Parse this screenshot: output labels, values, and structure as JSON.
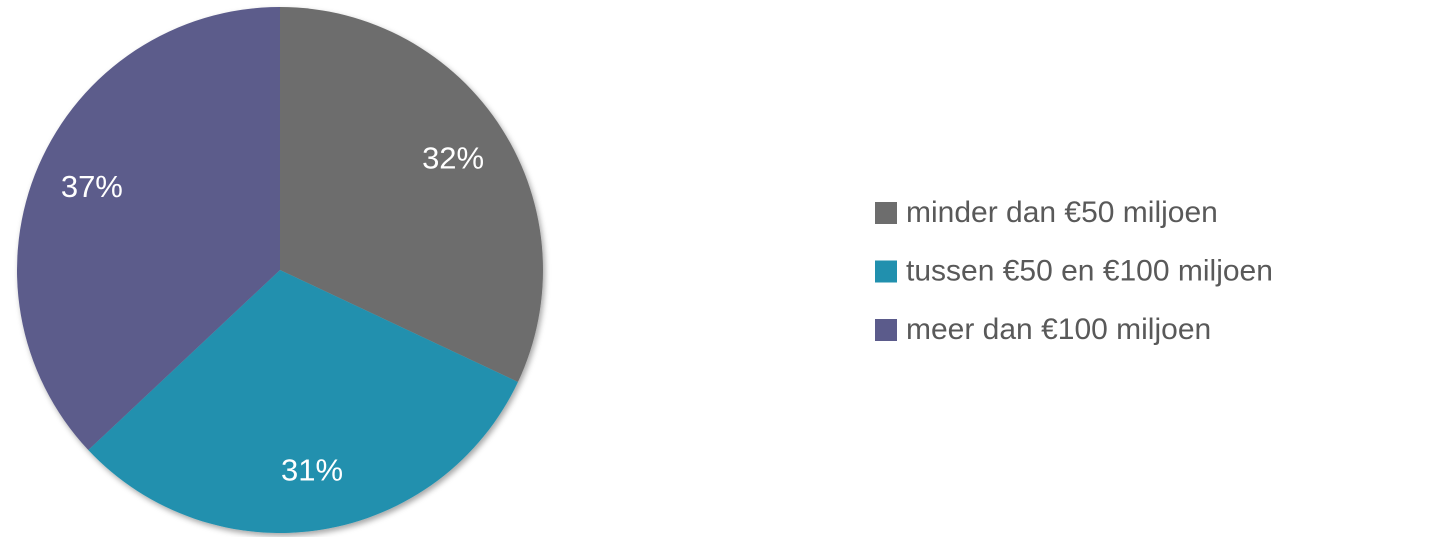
{
  "chart_data": {
    "type": "pie",
    "categories": [
      "minder dan €50 miljoen",
      "tussen €50 en €100 miljoen",
      "meer dan €100 miljoen"
    ],
    "values": [
      32,
      31,
      37
    ],
    "value_labels": [
      "32%",
      "31%",
      "37%"
    ],
    "colors": [
      "#6d6d6d",
      "#2190ae",
      "#5b5b8b"
    ],
    "legend": "right"
  }
}
